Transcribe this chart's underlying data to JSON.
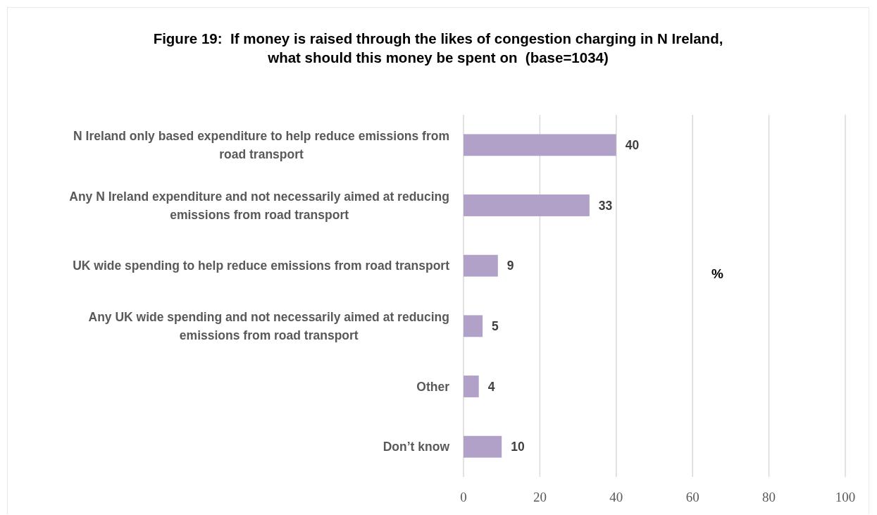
{
  "chart_data": {
    "type": "bar",
    "orientation": "horizontal",
    "title": "Figure 19:  If money is raised through the likes of congestion charging in N Ireland, what should this money be spent on  (base=1034)",
    "xlabel": "%",
    "categories": [
      "N Ireland only based expenditure to help reduce emissions from road transport",
      "Any N Ireland expenditure and not necessarily aimed at reducing emissions from road transport",
      "UK wide spending to help reduce emissions from road transport",
      "Any UK wide spending and not necessarily aimed at reducing emissions from road transport",
      "Other",
      "Don’t know"
    ],
    "values": [
      40,
      33,
      9,
      5,
      4,
      10
    ],
    "color": "#b1a0c7",
    "xlim": [
      0,
      100
    ],
    "xticks": [
      0,
      20,
      40,
      60,
      80,
      100
    ],
    "grid": "x",
    "data_labels": true
  }
}
